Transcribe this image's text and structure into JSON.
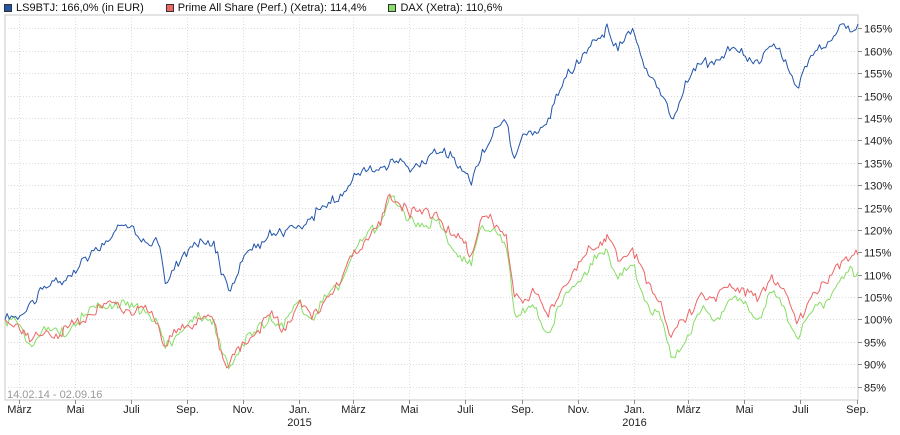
{
  "legend": [
    {
      "label": "LS9BTJ: 166,0% (in EUR)",
      "color": "#2255aa"
    },
    {
      "label": "Prime All Share (Perf.) (Xetra): 114,4%",
      "color": "#ee6666"
    },
    {
      "label": "DAX (Xetra): 110,6%",
      "color": "#88dd66"
    }
  ],
  "date_range": "14.02.14 - 02.09.16",
  "chart_data": {
    "type": "line",
    "title": "",
    "ylim": [
      82,
      168
    ],
    "y_ticks": [
      "85%",
      "90%",
      "95%",
      "100%",
      "105%",
      "110%",
      "115%",
      "120%",
      "125%",
      "130%",
      "135%",
      "140%",
      "145%",
      "150%",
      "155%",
      "160%",
      "165%"
    ],
    "x_range": [
      "2014-02-14",
      "2016-09-02"
    ],
    "x_ticks": [
      {
        "date": "2014-03-01",
        "label": "März",
        "year": ""
      },
      {
        "date": "2014-05-01",
        "label": "Mai",
        "year": ""
      },
      {
        "date": "2014-07-01",
        "label": "Juli",
        "year": ""
      },
      {
        "date": "2014-09-01",
        "label": "Sep.",
        "year": ""
      },
      {
        "date": "2014-11-01",
        "label": "Nov.",
        "year": ""
      },
      {
        "date": "2015-01-01",
        "label": "Jan.",
        "year": "2015"
      },
      {
        "date": "2015-03-01",
        "label": "März",
        "year": ""
      },
      {
        "date": "2015-05-01",
        "label": "Mai",
        "year": ""
      },
      {
        "date": "2015-07-01",
        "label": "Juli",
        "year": ""
      },
      {
        "date": "2015-09-01",
        "label": "Sep.",
        "year": ""
      },
      {
        "date": "2015-11-01",
        "label": "Nov.",
        "year": ""
      },
      {
        "date": "2016-01-01",
        "label": "Jan.",
        "year": "2016"
      },
      {
        "date": "2016-03-01",
        "label": "März",
        "year": ""
      },
      {
        "date": "2016-05-01",
        "label": "Mai",
        "year": ""
      },
      {
        "date": "2016-07-01",
        "label": "Juli",
        "year": ""
      },
      {
        "date": "2016-09-01",
        "label": "Sep.",
        "year": ""
      }
    ],
    "grid": true,
    "legend_position": "top-left",
    "series": [
      {
        "name": "LS9BTJ: 166,0% (in EUR)",
        "color": "#2255aa",
        "points": [
          [
            "2014-02-14",
            100.0
          ],
          [
            "2014-02-28",
            100.0
          ],
          [
            "2014-03-14",
            104.0
          ],
          [
            "2014-03-31",
            107.0
          ],
          [
            "2014-04-15",
            108.5
          ],
          [
            "2014-04-30",
            111.0
          ],
          [
            "2014-05-15",
            113.0
          ],
          [
            "2014-05-31",
            117.0
          ],
          [
            "2014-06-15",
            120.0
          ],
          [
            "2014-06-30",
            120.5
          ],
          [
            "2014-07-15",
            118.0
          ],
          [
            "2014-07-31",
            117.0
          ],
          [
            "2014-08-08",
            108.0
          ],
          [
            "2014-08-20",
            113.0
          ],
          [
            "2014-08-31",
            114.0
          ],
          [
            "2014-09-15",
            118.0
          ],
          [
            "2014-09-30",
            117.5
          ],
          [
            "2014-10-08",
            110.0
          ],
          [
            "2014-10-16",
            106.5
          ],
          [
            "2014-10-31",
            113.0
          ],
          [
            "2014-11-15",
            116.0
          ],
          [
            "2014-11-30",
            120.0
          ],
          [
            "2014-12-15",
            118.5
          ],
          [
            "2014-12-31",
            121.0
          ],
          [
            "2015-01-15",
            123.0
          ],
          [
            "2015-01-31",
            125.0
          ],
          [
            "2015-02-15",
            128.0
          ],
          [
            "2015-02-28",
            131.0
          ],
          [
            "2015-03-15",
            133.0
          ],
          [
            "2015-03-31",
            134.0
          ],
          [
            "2015-04-15",
            135.0
          ],
          [
            "2015-04-30",
            134.0
          ],
          [
            "2015-05-15",
            135.5
          ],
          [
            "2015-05-31",
            137.0
          ],
          [
            "2015-06-15",
            137.5
          ],
          [
            "2015-06-30",
            133.0
          ],
          [
            "2015-07-08",
            130.0
          ],
          [
            "2015-07-20",
            138.0
          ],
          [
            "2015-07-31",
            141.0
          ],
          [
            "2015-08-15",
            144.0
          ],
          [
            "2015-08-24",
            136.0
          ],
          [
            "2015-08-31",
            140.0
          ],
          [
            "2015-09-15",
            142.0
          ],
          [
            "2015-09-30",
            145.0
          ],
          [
            "2015-10-15",
            152.0
          ],
          [
            "2015-10-31",
            158.0
          ],
          [
            "2015-11-15",
            161.0
          ],
          [
            "2015-11-30",
            163.0
          ],
          [
            "2015-12-03",
            166.0
          ],
          [
            "2015-12-15",
            160.0
          ],
          [
            "2015-12-31",
            165.0
          ],
          [
            "2016-01-15",
            156.0
          ],
          [
            "2016-01-31",
            150.0
          ],
          [
            "2016-02-11",
            145.0
          ],
          [
            "2016-02-29",
            153.0
          ],
          [
            "2016-03-15",
            157.0
          ],
          [
            "2016-03-31",
            158.0
          ],
          [
            "2016-04-15",
            160.0
          ],
          [
            "2016-04-30",
            159.0
          ],
          [
            "2016-05-15",
            158.0
          ],
          [
            "2016-05-31",
            161.0
          ],
          [
            "2016-06-15",
            158.0
          ],
          [
            "2016-06-27",
            152.0
          ],
          [
            "2016-07-15",
            159.0
          ],
          [
            "2016-07-31",
            162.0
          ],
          [
            "2016-08-15",
            166.0
          ],
          [
            "2016-08-20",
            165.0
          ],
          [
            "2016-09-02",
            166.0
          ]
        ]
      },
      {
        "name": "Prime All Share (Perf.) (Xetra): 114,4%",
        "color": "#ee6666",
        "points": [
          [
            "2014-02-14",
            100.0
          ],
          [
            "2014-02-28",
            99.0
          ],
          [
            "2014-03-13",
            95.0
          ],
          [
            "2014-03-31",
            97.5
          ],
          [
            "2014-04-15",
            96.5
          ],
          [
            "2014-04-30",
            99.0
          ],
          [
            "2014-05-15",
            101.0
          ],
          [
            "2014-05-31",
            102.5
          ],
          [
            "2014-06-15",
            103.5
          ],
          [
            "2014-06-30",
            102.0
          ],
          [
            "2014-07-15",
            102.5
          ],
          [
            "2014-07-31",
            99.0
          ],
          [
            "2014-08-08",
            94.0
          ],
          [
            "2014-08-20",
            97.0
          ],
          [
            "2014-08-31",
            98.5
          ],
          [
            "2014-09-15",
            100.0
          ],
          [
            "2014-09-30",
            99.5
          ],
          [
            "2014-10-08",
            93.0
          ],
          [
            "2014-10-16",
            89.5
          ],
          [
            "2014-10-31",
            95.0
          ],
          [
            "2014-11-15",
            97.0
          ],
          [
            "2014-11-30",
            101.0
          ],
          [
            "2014-12-15",
            98.0
          ],
          [
            "2014-12-31",
            103.5
          ],
          [
            "2015-01-15",
            100.0
          ],
          [
            "2015-01-31",
            105.0
          ],
          [
            "2015-02-15",
            108.0
          ],
          [
            "2015-02-28",
            114.0
          ],
          [
            "2015-03-15",
            118.0
          ],
          [
            "2015-03-31",
            121.0
          ],
          [
            "2015-04-10",
            128.0
          ],
          [
            "2015-04-30",
            124.0
          ],
          [
            "2015-05-15",
            123.5
          ],
          [
            "2015-05-31",
            124.0
          ],
          [
            "2015-06-15",
            119.0
          ],
          [
            "2015-06-30",
            117.0
          ],
          [
            "2015-07-08",
            114.5
          ],
          [
            "2015-07-20",
            123.0
          ],
          [
            "2015-07-31",
            122.0
          ],
          [
            "2015-08-15",
            119.0
          ],
          [
            "2015-08-24",
            105.0
          ],
          [
            "2015-08-31",
            104.5
          ],
          [
            "2015-09-15",
            106.0
          ],
          [
            "2015-09-30",
            100.5
          ],
          [
            "2015-10-15",
            107.0
          ],
          [
            "2015-10-31",
            111.0
          ],
          [
            "2015-11-15",
            116.0
          ],
          [
            "2015-11-30",
            118.0
          ],
          [
            "2015-12-03",
            119.0
          ],
          [
            "2015-12-15",
            113.0
          ],
          [
            "2015-12-31",
            116.0
          ],
          [
            "2016-01-15",
            108.0
          ],
          [
            "2016-01-31",
            104.0
          ],
          [
            "2016-02-11",
            96.0
          ],
          [
            "2016-02-29",
            101.0
          ],
          [
            "2016-03-15",
            106.0
          ],
          [
            "2016-03-31",
            104.0
          ],
          [
            "2016-04-15",
            108.0
          ],
          [
            "2016-04-30",
            107.0
          ],
          [
            "2016-05-15",
            104.0
          ],
          [
            "2016-05-31",
            110.0
          ],
          [
            "2016-06-15",
            106.0
          ],
          [
            "2016-06-27",
            99.0
          ],
          [
            "2016-07-15",
            106.0
          ],
          [
            "2016-07-31",
            108.0
          ],
          [
            "2016-08-15",
            113.0
          ],
          [
            "2016-08-20",
            114.0
          ],
          [
            "2016-09-02",
            114.4
          ]
        ]
      },
      {
        "name": "DAX (Xetra): 110,6%",
        "color": "#88dd66",
        "points": [
          [
            "2014-02-14",
            100.0
          ],
          [
            "2014-02-28",
            99.0
          ],
          [
            "2014-03-13",
            94.5
          ],
          [
            "2014-03-31",
            97.5
          ],
          [
            "2014-04-15",
            96.5
          ],
          [
            "2014-04-30",
            99.0
          ],
          [
            "2014-05-15",
            101.0
          ],
          [
            "2014-05-31",
            103.0
          ],
          [
            "2014-06-15",
            104.0
          ],
          [
            "2014-06-30",
            102.5
          ],
          [
            "2014-07-15",
            102.5
          ],
          [
            "2014-07-31",
            99.0
          ],
          [
            "2014-08-08",
            93.5
          ],
          [
            "2014-08-20",
            96.5
          ],
          [
            "2014-08-31",
            98.5
          ],
          [
            "2014-09-15",
            100.5
          ],
          [
            "2014-09-30",
            100.0
          ],
          [
            "2014-10-08",
            93.0
          ],
          [
            "2014-10-16",
            89.0
          ],
          [
            "2014-10-31",
            94.5
          ],
          [
            "2014-11-15",
            97.0
          ],
          [
            "2014-11-30",
            101.0
          ],
          [
            "2014-12-15",
            98.0
          ],
          [
            "2014-12-31",
            104.0
          ],
          [
            "2015-01-15",
            100.0
          ],
          [
            "2015-01-31",
            105.0
          ],
          [
            "2015-02-15",
            108.0
          ],
          [
            "2015-02-28",
            114.5
          ],
          [
            "2015-03-15",
            118.5
          ],
          [
            "2015-03-31",
            121.5
          ],
          [
            "2015-04-10",
            127.5
          ],
          [
            "2015-04-30",
            122.0
          ],
          [
            "2015-05-15",
            121.5
          ],
          [
            "2015-05-31",
            122.0
          ],
          [
            "2015-06-15",
            116.5
          ],
          [
            "2015-06-30",
            114.0
          ],
          [
            "2015-07-08",
            112.0
          ],
          [
            "2015-07-20",
            121.0
          ],
          [
            "2015-07-31",
            120.0
          ],
          [
            "2015-08-15",
            116.0
          ],
          [
            "2015-08-24",
            101.5
          ],
          [
            "2015-08-31",
            101.0
          ],
          [
            "2015-09-15",
            102.5
          ],
          [
            "2015-09-30",
            97.0
          ],
          [
            "2015-10-15",
            103.5
          ],
          [
            "2015-10-31",
            108.0
          ],
          [
            "2015-11-15",
            112.5
          ],
          [
            "2015-11-30",
            114.5
          ],
          [
            "2015-12-03",
            115.5
          ],
          [
            "2015-12-15",
            109.0
          ],
          [
            "2015-12-31",
            112.0
          ],
          [
            "2016-01-15",
            104.0
          ],
          [
            "2016-01-31",
            100.0
          ],
          [
            "2016-02-11",
            91.5
          ],
          [
            "2016-02-29",
            96.5
          ],
          [
            "2016-03-15",
            102.0
          ],
          [
            "2016-03-31",
            100.0
          ],
          [
            "2016-04-15",
            104.5
          ],
          [
            "2016-04-30",
            103.5
          ],
          [
            "2016-05-15",
            100.0
          ],
          [
            "2016-05-31",
            106.0
          ],
          [
            "2016-06-15",
            102.0
          ],
          [
            "2016-06-27",
            96.0
          ],
          [
            "2016-07-15",
            102.0
          ],
          [
            "2016-07-31",
            104.5
          ],
          [
            "2016-08-15",
            109.5
          ],
          [
            "2016-08-20",
            110.5
          ],
          [
            "2016-09-02",
            110.6
          ]
        ]
      }
    ]
  }
}
